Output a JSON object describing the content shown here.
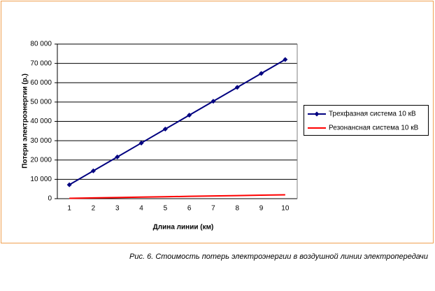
{
  "chart_data": {
    "type": "line",
    "x_label": "Длина линии (км)",
    "y_label": "Потери электроэнергии (р.)",
    "categories": [
      "1",
      "2",
      "3",
      "4",
      "5",
      "6",
      "7",
      "8",
      "9",
      "10"
    ],
    "series": [
      {
        "name": "Трехфазная система 10 кВ",
        "color": "#000080",
        "marker": "diamond",
        "values": [
          7200,
          14400,
          21600,
          28800,
          36000,
          43200,
          50400,
          57600,
          64800,
          72000
        ]
      },
      {
        "name": "Резонансная система 10 кВ",
        "color": "#ff0000",
        "marker": "none",
        "values": [
          200,
          400,
          600,
          800,
          1000,
          1200,
          1400,
          1600,
          1800,
          2000
        ]
      }
    ],
    "ylim": [
      0,
      80000
    ],
    "yticks": [
      0,
      {
        "value": 10000,
        "label": "10 000"
      },
      {
        "value": 20000,
        "label": "20 000"
      },
      {
        "value": 30000,
        "label": "30 000"
      },
      {
        "value": 40000,
        "label": "40 000"
      },
      {
        "value": 50000,
        "label": "50 000"
      },
      {
        "value": 60000,
        "label": "60 000"
      },
      {
        "value": 70000,
        "label": "70 000"
      },
      {
        "value": 80000,
        "label": "80 000"
      }
    ],
    "grid": true,
    "legend": "right"
  },
  "caption": "Рис. 6. Стоимость потерь электроэнергии в воздушной линии электропередачи"
}
